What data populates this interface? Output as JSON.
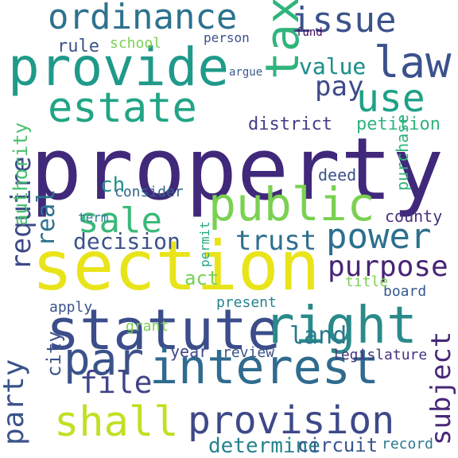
{
  "words": [
    {
      "text": "property",
      "color": "#40287a"
    },
    {
      "text": "section",
      "color": "#e8e419"
    },
    {
      "text": "statute",
      "color": "#3b4d8a"
    },
    {
      "text": "provide",
      "color": "#1f9a8a"
    },
    {
      "text": "interest",
      "color": "#2f6b8e"
    },
    {
      "text": "right",
      "color": "#2a8a8a"
    },
    {
      "text": "public",
      "color": "#7ad151"
    },
    {
      "text": "estate",
      "color": "#21a585"
    },
    {
      "text": "ordinance",
      "color": "#2c728e"
    },
    {
      "text": "par",
      "color": "#3b528b"
    },
    {
      "text": "provision",
      "color": "#3e4989"
    },
    {
      "text": "shall",
      "color": "#c2df23"
    },
    {
      "text": "power",
      "color": "#2d708e"
    },
    {
      "text": "tax",
      "color": "#2fb47c"
    },
    {
      "text": "issue",
      "color": "#3b528b"
    },
    {
      "text": "law",
      "color": "#3b528b"
    },
    {
      "text": "use",
      "color": "#1fa187"
    },
    {
      "text": "sale",
      "color": "#3ab979"
    },
    {
      "text": "purpose",
      "color": "#482576"
    },
    {
      "text": "trust",
      "color": "#2d708e"
    },
    {
      "text": "land",
      "color": "#2a788e"
    },
    {
      "text": "file",
      "color": "#414487"
    },
    {
      "text": "party",
      "color": "#3b528b"
    },
    {
      "text": "require",
      "color": "#3e4989"
    },
    {
      "text": "subject",
      "color": "#482878"
    },
    {
      "text": "pay",
      "color": "#3e4a89"
    },
    {
      "text": "value",
      "color": "#21918c"
    },
    {
      "text": "decision",
      "color": "#3b528b"
    },
    {
      "text": "determine",
      "color": "#26828e"
    },
    {
      "text": "circuit",
      "color": "#39568c"
    },
    {
      "text": "real",
      "color": "#2c728e"
    },
    {
      "text": "ch",
      "color": "#21918c"
    },
    {
      "text": "act",
      "color": "#75d054"
    },
    {
      "text": "petition",
      "color": "#2fb47c"
    },
    {
      "text": "district",
      "color": "#433e85"
    },
    {
      "text": "county",
      "color": "#46327e"
    },
    {
      "text": "city",
      "color": "#3b528b"
    },
    {
      "text": "authority",
      "color": "#48c16e"
    },
    {
      "text": "year",
      "color": "#3f4788"
    },
    {
      "text": "legislature",
      "color": "#46337f"
    },
    {
      "text": "review",
      "color": "#3b528b"
    },
    {
      "text": "record",
      "color": "#2a788e"
    },
    {
      "text": "deed",
      "color": "#3b528b"
    },
    {
      "text": "rule",
      "color": "#3b528b"
    },
    {
      "text": "school",
      "color": "#7ad151"
    },
    {
      "text": "consider",
      "color": "#31668e"
    },
    {
      "text": "grant",
      "color": "#7ad151"
    },
    {
      "text": "board",
      "color": "#38598c"
    },
    {
      "text": "term",
      "color": "#2a788e"
    },
    {
      "text": "apply",
      "color": "#3b528b"
    },
    {
      "text": "title",
      "color": "#7ad151"
    },
    {
      "text": "present",
      "color": "#26828e"
    },
    {
      "text": "permit",
      "color": "#22a884"
    },
    {
      "text": "purchase",
      "color": "#2fb47c"
    },
    {
      "text": "argue",
      "color": "#38598c"
    },
    {
      "text": "fund",
      "color": "#46085c"
    },
    {
      "text": "person",
      "color": "#3b528b"
    },
    {
      "text": "value",
      "color": "#21918c"
    }
  ]
}
